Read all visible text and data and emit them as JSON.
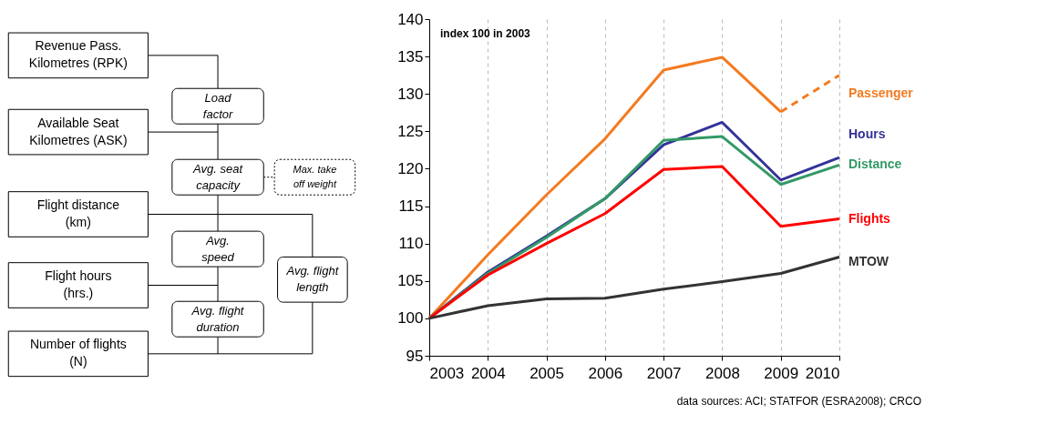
{
  "chart_data": [
    {
      "type": "other",
      "annotations": [
        "Revenue Pass.\nKilometres (RPK)",
        "Load\nfactor",
        "Available Seat\nKilometres (ASK)",
        "Avg. seat\ncapacity",
        "Max. take\noff weight",
        "Flight distance\n(km)",
        "Avg.\nspeed",
        "Avg. flight\nlength",
        "Flight hours\n(hrs.)",
        "Avg. flight\nduration",
        "Number of flights\n(N)"
      ]
    },
    {
      "type": "line",
      "x": [
        2003,
        2004,
        2005,
        2006,
        2007,
        2008,
        2009,
        2010
      ],
      "series": [
        {
          "name": "Passenger",
          "color": "#f47a20",
          "values": [
            100,
            108.5,
            116.5,
            124,
            133.2,
            134.9,
            127.6,
            null
          ]
        },
        {
          "color": "#f47a20",
          "line_style": "dashed",
          "x": [
            2009,
            2010
          ],
          "values": [
            127.6,
            132.5
          ]
        },
        {
          "name": "Hours",
          "color": "#333399",
          "values": [
            100,
            106.2,
            111,
            116,
            123.2,
            126.2,
            118.5,
            121.5
          ]
        },
        {
          "name": "Distance",
          "color": "#339966",
          "values": [
            100,
            106,
            110.8,
            116,
            123.8,
            124.3,
            117.9,
            120.5
          ]
        },
        {
          "name": "Flights",
          "color": "#ff0000",
          "values": [
            100,
            105.8,
            110,
            114,
            119.9,
            120.3,
            112.3,
            113.3
          ]
        },
        {
          "name": "MTOW",
          "color": "#333333",
          "values": [
            100,
            101.7,
            102.6,
            102.7,
            103.9,
            104.9,
            106,
            108.2
          ]
        }
      ],
      "xlim": [
        2003,
        2010
      ],
      "xticks": [
        2003,
        2004,
        2005,
        2006,
        2007,
        2008,
        2009,
        2010
      ],
      "ylim": [
        95,
        140
      ],
      "yticks": [
        95,
        100,
        105,
        110,
        115,
        120,
        125,
        130,
        135,
        140
      ],
      "grid": "x",
      "line_style": "solid",
      "marker": "none",
      "annotations": [
        "index 100 in 2003",
        "data sources: ACI; STATFOR (ESRA2008); CRCO"
      ]
    }
  ]
}
